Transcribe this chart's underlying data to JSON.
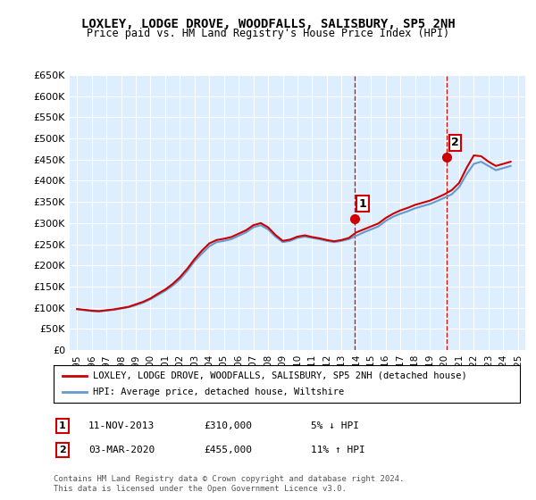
{
  "title": "LOXLEY, LODGE DROVE, WOODFALLS, SALISBURY, SP5 2NH",
  "subtitle": "Price paid vs. HM Land Registry's House Price Index (HPI)",
  "legend_label_red": "LOXLEY, LODGE DROVE, WOODFALLS, SALISBURY, SP5 2NH (detached house)",
  "legend_label_blue": "HPI: Average price, detached house, Wiltshire",
  "annotation1_label": "1",
  "annotation1_date": "11-NOV-2013",
  "annotation1_price": "£310,000",
  "annotation1_hpi": "5% ↓ HPI",
  "annotation2_label": "2",
  "annotation2_date": "03-MAR-2020",
  "annotation2_price": "£455,000",
  "annotation2_hpi": "11% ↑ HPI",
  "footer": "Contains HM Land Registry data © Crown copyright and database right 2024.\nThis data is licensed under the Open Government Licence v3.0.",
  "red_color": "#cc0000",
  "blue_color": "#6699cc",
  "bg_color": "#ddeeff",
  "vline_color": "#cc0000",
  "ylim": [
    0,
    650000
  ],
  "yticks": [
    0,
    50000,
    100000,
    150000,
    200000,
    250000,
    300000,
    350000,
    400000,
    450000,
    500000,
    550000,
    600000,
    650000
  ],
  "sale1_year": 2013.87,
  "sale1_value": 310000,
  "sale2_year": 2020.17,
  "sale2_value": 455000,
  "hpi_years": [
    1995,
    1995.5,
    1996,
    1996.5,
    1997,
    1997.5,
    1998,
    1998.5,
    1999,
    1999.5,
    2000,
    2000.5,
    2001,
    2001.5,
    2002,
    2002.5,
    2003,
    2003.5,
    2004,
    2004.5,
    2005,
    2005.5,
    2006,
    2006.5,
    2007,
    2007.5,
    2008,
    2008.5,
    2009,
    2009.5,
    2010,
    2010.5,
    2011,
    2011.5,
    2012,
    2012.5,
    2013,
    2013.5,
    2014,
    2014.5,
    2015,
    2015.5,
    2016,
    2016.5,
    2017,
    2017.5,
    2018,
    2018.5,
    2019,
    2019.5,
    2020,
    2020.5,
    2021,
    2021.5,
    2022,
    2022.5,
    2023,
    2023.5,
    2024,
    2024.5
  ],
  "hpi_values": [
    96000,
    94000,
    92000,
    91000,
    93000,
    95000,
    98000,
    101000,
    106000,
    112000,
    120000,
    130000,
    140000,
    152000,
    167000,
    187000,
    210000,
    228000,
    245000,
    255000,
    258000,
    262000,
    270000,
    278000,
    290000,
    295000,
    285000,
    268000,
    255000,
    258000,
    265000,
    268000,
    265000,
    262000,
    258000,
    255000,
    258000,
    262000,
    270000,
    278000,
    285000,
    292000,
    305000,
    315000,
    322000,
    328000,
    335000,
    340000,
    345000,
    352000,
    360000,
    368000,
    385000,
    415000,
    440000,
    445000,
    435000,
    425000,
    430000,
    435000
  ],
  "red_years": [
    1995,
    1995.5,
    1996,
    1996.5,
    1997,
    1997.5,
    1998,
    1998.5,
    1999,
    1999.5,
    2000,
    2000.5,
    2001,
    2001.5,
    2002,
    2002.5,
    2003,
    2003.5,
    2004,
    2004.5,
    2005,
    2005.5,
    2006,
    2006.5,
    2007,
    2007.5,
    2008,
    2008.5,
    2009,
    2009.5,
    2010,
    2010.5,
    2011,
    2011.5,
    2012,
    2012.5,
    2013,
    2013.5,
    2014,
    2014.5,
    2015,
    2015.5,
    2016,
    2016.5,
    2017,
    2017.5,
    2018,
    2018.5,
    2019,
    2019.5,
    2020,
    2020.5,
    2021,
    2021.5,
    2022,
    2022.5,
    2023,
    2023.5,
    2024,
    2024.5
  ],
  "red_values": [
    97000,
    95000,
    93000,
    92000,
    94000,
    96000,
    99000,
    102000,
    108000,
    114000,
    122000,
    133000,
    143000,
    156000,
    172000,
    192000,
    215000,
    235000,
    252000,
    260000,
    263000,
    267000,
    275000,
    283000,
    295000,
    300000,
    290000,
    272000,
    258000,
    261000,
    268000,
    271000,
    267000,
    264000,
    260000,
    257000,
    260000,
    265000,
    278000,
    285000,
    292000,
    299000,
    312000,
    322000,
    330000,
    336000,
    343000,
    348000,
    353000,
    360000,
    368000,
    378000,
    395000,
    430000,
    460000,
    458000,
    445000,
    435000,
    440000,
    445000
  ]
}
